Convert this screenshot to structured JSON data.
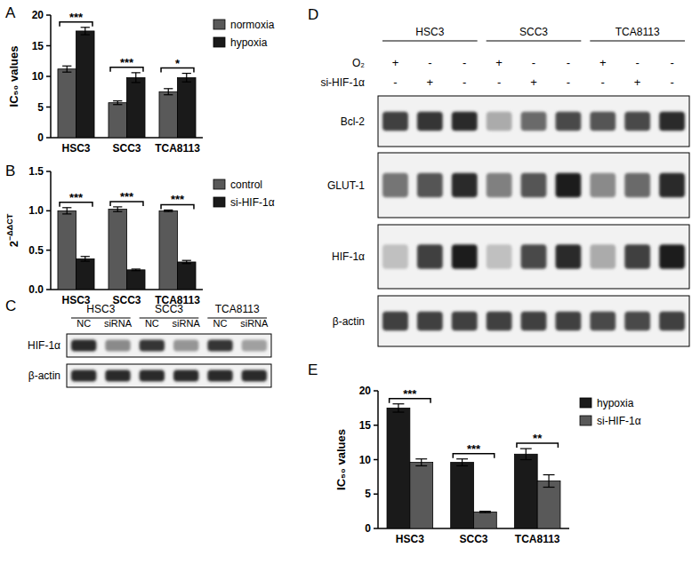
{
  "chart_data": [
    {
      "type": "bar",
      "title": "A",
      "y_label": "IC₅₀ values",
      "categories": [
        "HSC3",
        "SCC3",
        "TCA8113"
      ],
      "series": [
        {
          "name": "normoxia",
          "color": "#595959",
          "values": [
            11.2,
            5.7,
            7.5
          ],
          "errors": [
            0.5,
            0.3,
            0.5
          ]
        },
        {
          "name": "hypoxia",
          "color": "#1a1a1a",
          "values": [
            17.4,
            9.8,
            9.8
          ],
          "errors": [
            0.6,
            0.8,
            0.7
          ]
        }
      ],
      "annotations": [
        "***",
        "***",
        "*"
      ],
      "ylim": [
        0,
        20
      ],
      "yticks": [
        0,
        5,
        10,
        15,
        20
      ],
      "legend": "top-right"
    },
    {
      "type": "bar",
      "title": "B",
      "y_label": "2−ΔΔCT",
      "categories": [
        "HSC3",
        "SCC3",
        "TCA8113"
      ],
      "series": [
        {
          "name": "control",
          "color": "#595959",
          "values": [
            1.0,
            1.02,
            1.0
          ],
          "errors": [
            0.04,
            0.03,
            0.01
          ]
        },
        {
          "name": "si-HIF-1α",
          "color": "#1a1a1a",
          "values": [
            0.39,
            0.25,
            0.35
          ],
          "errors": [
            0.03,
            0.01,
            0.02
          ]
        }
      ],
      "annotations": [
        "***",
        "***",
        "***"
      ],
      "ylim": [
        0,
        1.5
      ],
      "yticks": [
        {
          "value": 0,
          "label": "0.0"
        },
        {
          "value": 0.5,
          "label": "0.5"
        },
        {
          "value": 1,
          "label": "1.0"
        },
        {
          "value": 1.5,
          "label": "1.5"
        }
      ],
      "legend": "top-right"
    },
    {
      "type": "bar",
      "title": "E",
      "y_label": "IC₅₀ values",
      "categories": [
        "HSC3",
        "SCC3",
        "TCA8113"
      ],
      "series": [
        {
          "name": "hypoxia",
          "color": "#1a1a1a",
          "values": [
            17.5,
            9.6,
            10.8
          ],
          "errors": [
            0.6,
            0.5,
            0.8
          ]
        },
        {
          "name": "si-HIF-1α",
          "color": "#595959",
          "values": [
            9.6,
            2.4,
            6.9
          ],
          "errors": [
            0.5,
            0.1,
            0.9
          ]
        }
      ],
      "annotations": [
        "***",
        "***",
        "**"
      ],
      "ylim": [
        0,
        20
      ],
      "yticks": [
        0,
        5,
        10,
        15,
        20
      ],
      "legend": "top-right"
    }
  ],
  "blots": [
    {
      "title": "C",
      "groups": [
        "HSC3",
        "SCC3",
        "TCA8113"
      ],
      "lane_labels": [
        "NC",
        "siRNA",
        "NC",
        "siRNA",
        "NC",
        "siRNA"
      ],
      "conditions": [],
      "rows": [
        {
          "label": "HIF-1α",
          "intensity": [
            0.9,
            0.45,
            0.85,
            0.4,
            0.85,
            0.35
          ]
        },
        {
          "label": "β-actin",
          "intensity": [
            0.9,
            0.9,
            0.9,
            0.9,
            0.9,
            0.9
          ]
        }
      ]
    },
    {
      "title": "D",
      "groups": [
        "HSC3",
        "SCC3",
        "TCA8113"
      ],
      "lane_labels": [],
      "conditions": [
        {
          "label": "O₂",
          "values": [
            "+",
            "-",
            "-",
            "+",
            "-",
            "-",
            "+",
            "-",
            "-"
          ]
        },
        {
          "label": "si-HIF-1α",
          "values": [
            "-",
            "+",
            "-",
            "-",
            "+",
            "-",
            "-",
            "+",
            "-"
          ]
        }
      ],
      "rows": [
        {
          "label": "Bcl-2",
          "intensity": [
            0.8,
            0.85,
            0.9,
            0.3,
            0.6,
            0.75,
            0.7,
            0.75,
            0.9
          ]
        },
        {
          "label": "GLUT-1",
          "intensity": [
            0.55,
            0.7,
            0.9,
            0.5,
            0.7,
            0.95,
            0.45,
            0.6,
            0.9
          ]
        },
        {
          "label": "HIF-1α",
          "intensity": [
            0.2,
            0.8,
            0.95,
            0.2,
            0.75,
            0.9,
            0.3,
            0.8,
            0.95
          ]
        },
        {
          "label": "β-actin",
          "intensity": [
            0.8,
            0.8,
            0.8,
            0.8,
            0.8,
            0.8,
            0.75,
            0.75,
            0.8
          ]
        }
      ]
    }
  ]
}
